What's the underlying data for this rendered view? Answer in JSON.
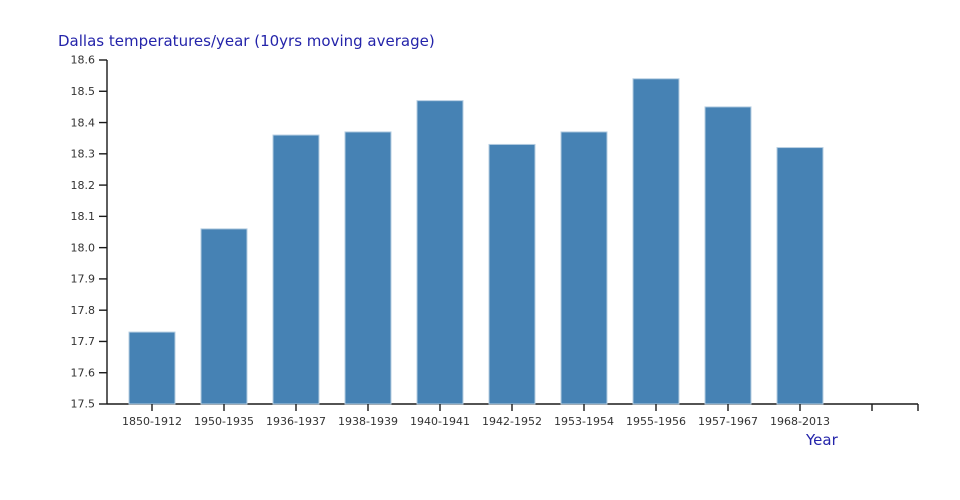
{
  "chart_data": {
    "type": "bar",
    "title": "Dallas temperatures/year (10yrs moving average)",
    "xlabel": "Year",
    "ylabel": "",
    "categories": [
      "1850-1912",
      "1950-1935",
      "1936-1937",
      "1938-1939",
      "1940-1941",
      "1942-1952",
      "1953-1954",
      "1955-1956",
      "1957-1967",
      "1968-2013"
    ],
    "values": [
      17.73,
      18.06,
      18.36,
      18.37,
      18.47,
      18.33,
      18.37,
      18.54,
      18.45,
      18.32
    ],
    "ylim": [
      17.5,
      18.6
    ],
    "ytick_step": 0.1,
    "ytick_labels": [
      "17.5",
      "17.6",
      "17.7",
      "17.8",
      "17.9",
      "18.0",
      "18.1",
      "18.2",
      "18.3",
      "18.4",
      "18.5",
      "18.6"
    ],
    "grid": false,
    "legend": "none",
    "x_axis": {
      "unlabeled_extra_ticks": 1,
      "end_tick": true
    },
    "colors": {
      "background": "#ffffff",
      "bar_fill": "#4682b4",
      "bar_edge": "#b5cde1",
      "axis": "#1a1a1a",
      "tick_label": "#333333",
      "title": "#2424aa"
    }
  }
}
